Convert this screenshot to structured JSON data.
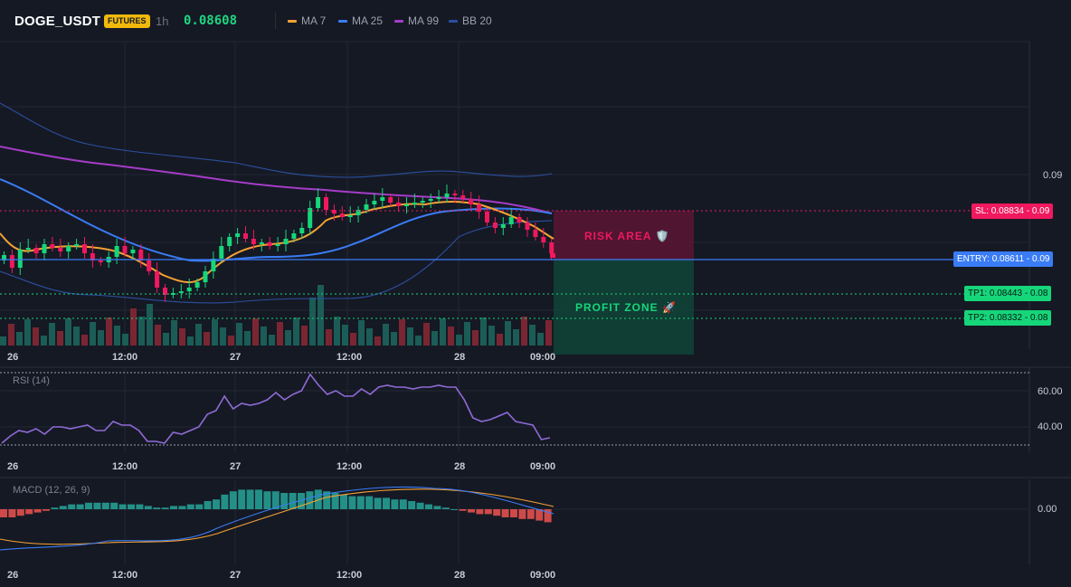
{
  "header": {
    "symbol": "DOGE_USDT",
    "badge": "FUTURES",
    "timeframe": "1h",
    "price": "0.08608",
    "indicators": [
      {
        "label": "MA 7",
        "color": "#f7a233"
      },
      {
        "label": "MA 25",
        "color": "#3a7cf5"
      },
      {
        "label": "MA 99",
        "color": "#a63cc8"
      },
      {
        "label": "BB 20",
        "color": "#2b4f9e"
      }
    ]
  },
  "price_axis": {
    "label_009": "0.09"
  },
  "tags": {
    "sl": {
      "label": "SL: 0.08834",
      "value": "0.09",
      "color": "#f0185e"
    },
    "entry": {
      "label": "ENTRY: 0.08611",
      "value": "0.09",
      "color": "#3a7cf5"
    },
    "tp1": {
      "label": "TP1: 0.08443",
      "value": "0.08",
      "color": "#16d67a"
    },
    "tp2": {
      "label": "TP2: 0.08332",
      "value": "0.08",
      "color": "#16d67a"
    }
  },
  "zones": {
    "risk": "RISK AREA 🛡️",
    "profit": "PROFIT ZONE 🚀"
  },
  "time_labels": [
    "26",
    "12:00",
    "27",
    "12:00",
    "28",
    "09:00"
  ],
  "rsi": {
    "title": "RSI (14)",
    "tick_60": "60.00",
    "tick_40": "40.00"
  },
  "macd": {
    "title": "MACD (12, 26, 9)",
    "tick_0": "0.00"
  },
  "chart_data": {
    "type": "candlestick",
    "price_levels": {
      "sl": 0.08834,
      "entry": 0.08611,
      "tp1": 0.08443,
      "tp2": 0.08332
    },
    "rsi_values": [
      31,
      35,
      38,
      37,
      39,
      36,
      40,
      40,
      39,
      40,
      41,
      38,
      38,
      43,
      41,
      41,
      38,
      32,
      32,
      31,
      37,
      36,
      38,
      40,
      47,
      49,
      57,
      50,
      53,
      52,
      53,
      55,
      59,
      55,
      58,
      60,
      69,
      63,
      58,
      60,
      57,
      57,
      61,
      58,
      62,
      63,
      62,
      62,
      61,
      62,
      62,
      63,
      62,
      62,
      55,
      45,
      43,
      44,
      46,
      48,
      43,
      42,
      41,
      33,
      34
    ],
    "macd_hist": [
      -0.0005,
      -0.0005,
      -0.0004,
      -0.0003,
      -0.0002,
      -0.0001,
      0.0001,
      0.0002,
      0.0003,
      0.0003,
      0.0004,
      0.0004,
      0.0004,
      0.0004,
      0.0003,
      0.0003,
      0.0003,
      0.0002,
      0.0001,
      0.0001,
      0.0002,
      0.0002,
      0.0003,
      0.0003,
      0.0005,
      0.0006,
      0.0009,
      0.0011,
      0.0012,
      0.0012,
      0.0012,
      0.0011,
      0.0011,
      0.001,
      0.001,
      0.001,
      0.0011,
      0.0012,
      0.0011,
      0.001,
      0.0009,
      0.0008,
      0.0008,
      0.0008,
      0.0007,
      0.0007,
      0.0006,
      0.0006,
      0.0005,
      0.0004,
      0.0003,
      0.0002,
      0.0001,
      0.0,
      -0.0001,
      -0.0002,
      -0.0003,
      -0.0003,
      -0.0004,
      -0.0005,
      -0.0005,
      -0.0006,
      -0.0006,
      -0.0007,
      -0.0008
    ]
  }
}
